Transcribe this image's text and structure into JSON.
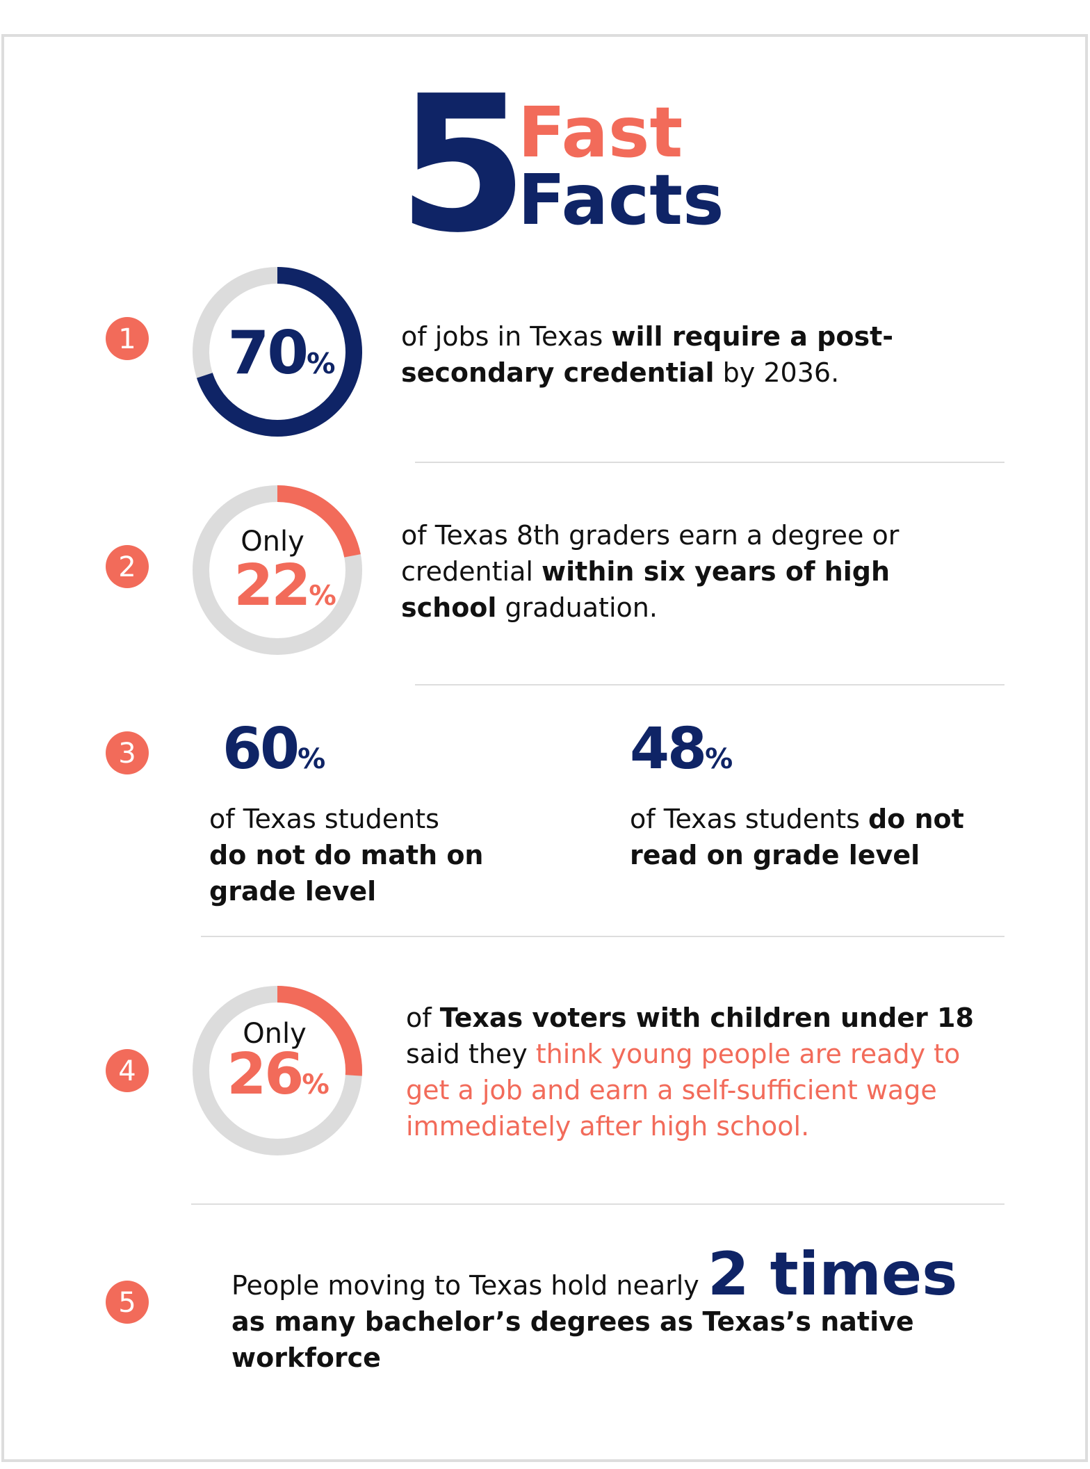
{
  "header": {
    "number": "5",
    "line1": "Fast",
    "line2": "Facts"
  },
  "colors": {
    "navy": "#0f2466",
    "accent": "#f26b5a",
    "ring": "#dcdcdc",
    "text": "#111111"
  },
  "facts": [
    {
      "number": "1",
      "stat": {
        "value": 70,
        "unit": "%",
        "color": "navy"
      },
      "lines": [
        [
          {
            "text": "of jobs in Texas ",
            "style": "regular"
          },
          {
            "text": "will require a post-",
            "style": "bold"
          }
        ],
        [
          {
            "text": "secondary credential",
            "style": "bold"
          },
          {
            "text": " by 2036.",
            "style": "regular"
          }
        ]
      ]
    },
    {
      "number": "2",
      "stat": {
        "prefix": "Only",
        "value": 22,
        "unit": "%",
        "color": "accent"
      },
      "lines": [
        [
          {
            "text": "of Texas 8th graders earn a degree or",
            "style": "regular"
          }
        ],
        [
          {
            "text": "credential ",
            "style": "regular"
          },
          {
            "text": "within six years of high",
            "style": "bold"
          }
        ],
        [
          {
            "text": "school",
            "style": "bold"
          },
          {
            "text": " graduation.",
            "style": "regular"
          }
        ]
      ]
    },
    {
      "number": "3",
      "columns": [
        {
          "value": 60,
          "unit": "%",
          "lines": [
            [
              {
                "text": "of Texas students",
                "style": "regular"
              }
            ],
            [
              {
                "text": "do not do math on",
                "style": "bold"
              }
            ],
            [
              {
                "text": "grade level",
                "style": "bold"
              }
            ]
          ]
        },
        {
          "value": 48,
          "unit": "%",
          "lines": [
            [
              {
                "text": "of Texas students ",
                "style": "regular"
              },
              {
                "text": "do not",
                "style": "bold"
              }
            ],
            [
              {
                "text": "read on grade level",
                "style": "bold"
              }
            ]
          ]
        }
      ]
    },
    {
      "number": "4",
      "stat": {
        "prefix": "Only",
        "value": 26,
        "unit": "%",
        "color": "accent"
      },
      "lines": [
        [
          {
            "text": "of ",
            "style": "regular"
          },
          {
            "text": "Texas voters with children under 18",
            "style": "bold"
          }
        ],
        [
          {
            "text": "said they ",
            "style": "regular"
          },
          {
            "text": "think young people are ready to",
            "style": "accent"
          }
        ],
        [
          {
            "text": "get a job and earn a self-sufficient wage",
            "style": "accent"
          }
        ],
        [
          {
            "text": "immediately after high school.",
            "style": "accent"
          }
        ]
      ]
    },
    {
      "number": "5",
      "lines": [
        [
          {
            "text": "People moving to Texas hold nearly ",
            "style": "regular"
          },
          {
            "text": "2 times",
            "style": "big"
          }
        ],
        [
          {
            "text": "as many bachelor’s degrees as Texas’s native",
            "style": "bold"
          }
        ],
        [
          {
            "text": "workforce",
            "style": "bold"
          }
        ]
      ]
    }
  ]
}
